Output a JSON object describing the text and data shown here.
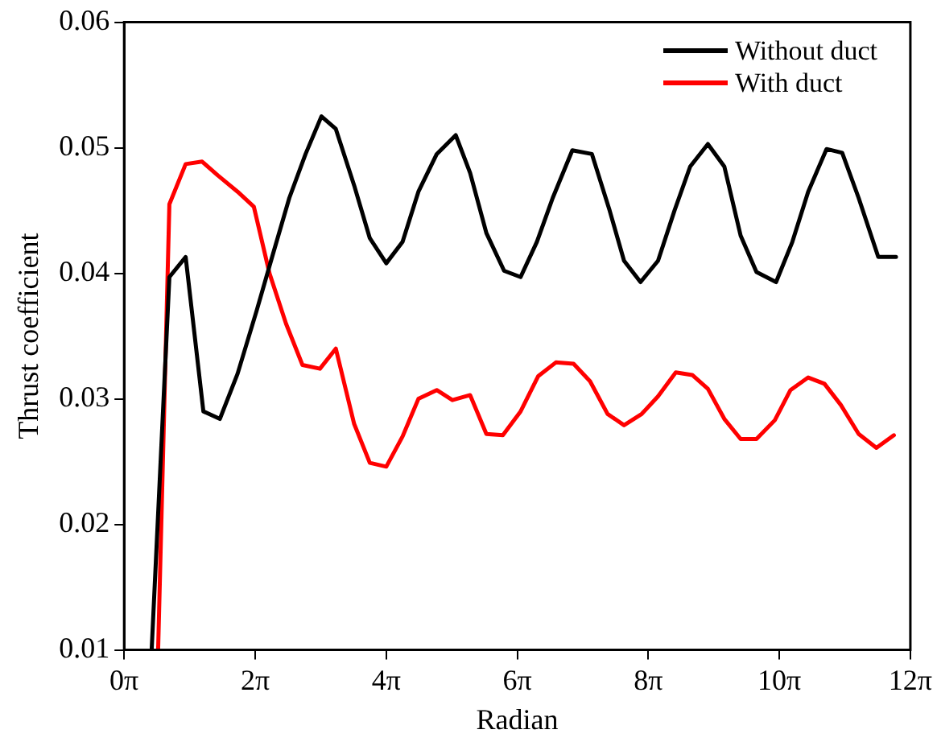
{
  "chart_data": {
    "type": "line",
    "xlabel": "Radian",
    "ylabel": "Thrust coefficient",
    "xlim": [
      0,
      37.699
    ],
    "xticks": [
      {
        "value": 0,
        "label": "0π"
      },
      {
        "value": 6.283,
        "label": "2π"
      },
      {
        "value": 12.566,
        "label": "4π"
      },
      {
        "value": 18.85,
        "label": "6π"
      },
      {
        "value": 25.133,
        "label": "8π"
      },
      {
        "value": 31.416,
        "label": "10π"
      },
      {
        "value": 37.699,
        "label": "12π"
      }
    ],
    "ylim": [
      0.01,
      0.06
    ],
    "yticks": [
      0.01,
      0.02,
      0.03,
      0.04,
      0.05,
      0.06
    ],
    "grid": false,
    "legend": "top right",
    "marker": "none",
    "line_style": "solid",
    "series": [
      {
        "name": "Without duct",
        "color": "#000000",
        "x": [
          1.32,
          2.17,
          2.95,
          3.8,
          4.59,
          5.44,
          6.35,
          7.13,
          7.92,
          8.7,
          9.46,
          10.15,
          11.03,
          11.78,
          12.57,
          13.35,
          14.11,
          14.99,
          15.9,
          16.59,
          17.37,
          18.22,
          19.01,
          19.79,
          20.55,
          21.49,
          22.43,
          23.28,
          23.97,
          24.76,
          25.6,
          26.39,
          27.14,
          27.99,
          28.78,
          29.56,
          30.32,
          31.26,
          32.04,
          32.8,
          33.68,
          34.43,
          35.22,
          36.16,
          37.01
        ],
        "values": [
          0.01,
          0.0397,
          0.0413,
          0.029,
          0.0284,
          0.032,
          0.037,
          0.0415,
          0.046,
          0.0495,
          0.0525,
          0.0515,
          0.047,
          0.0428,
          0.0408,
          0.0425,
          0.0465,
          0.0495,
          0.051,
          0.048,
          0.0432,
          0.0402,
          0.0397,
          0.0425,
          0.046,
          0.0498,
          0.0495,
          0.045,
          0.041,
          0.0393,
          0.041,
          0.045,
          0.0485,
          0.0503,
          0.0485,
          0.043,
          0.0401,
          0.0393,
          0.0425,
          0.0465,
          0.0499,
          0.0496,
          0.046,
          0.0413,
          0.0413
        ]
      },
      {
        "name": "With duct",
        "color": "#ff0000",
        "x": [
          1.63,
          2.17,
          2.95,
          3.74,
          4.49,
          5.44,
          6.22,
          6.97,
          7.76,
          8.55,
          9.39,
          10.15,
          11.03,
          11.78,
          12.57,
          13.35,
          14.11,
          14.99,
          15.74,
          16.59,
          17.37,
          18.16,
          19.01,
          19.85,
          20.7,
          21.55,
          22.34,
          23.18,
          23.97,
          24.82,
          25.6,
          26.45,
          27.24,
          27.99,
          28.78,
          29.56,
          30.32,
          31.2,
          31.95,
          32.8,
          33.58,
          34.37,
          35.22,
          36.07,
          36.91
        ],
        "values": [
          0.01,
          0.0455,
          0.0487,
          0.0489,
          0.0478,
          0.0465,
          0.0453,
          0.04,
          0.036,
          0.0327,
          0.0324,
          0.034,
          0.028,
          0.0249,
          0.0246,
          0.027,
          0.03,
          0.0307,
          0.0299,
          0.0303,
          0.0272,
          0.0271,
          0.029,
          0.0318,
          0.0329,
          0.0328,
          0.0314,
          0.0288,
          0.0279,
          0.0288,
          0.0302,
          0.0321,
          0.0319,
          0.0308,
          0.0284,
          0.0268,
          0.0268,
          0.0283,
          0.0307,
          0.0317,
          0.0312,
          0.0295,
          0.0272,
          0.0261,
          0.0271
        ]
      }
    ]
  }
}
